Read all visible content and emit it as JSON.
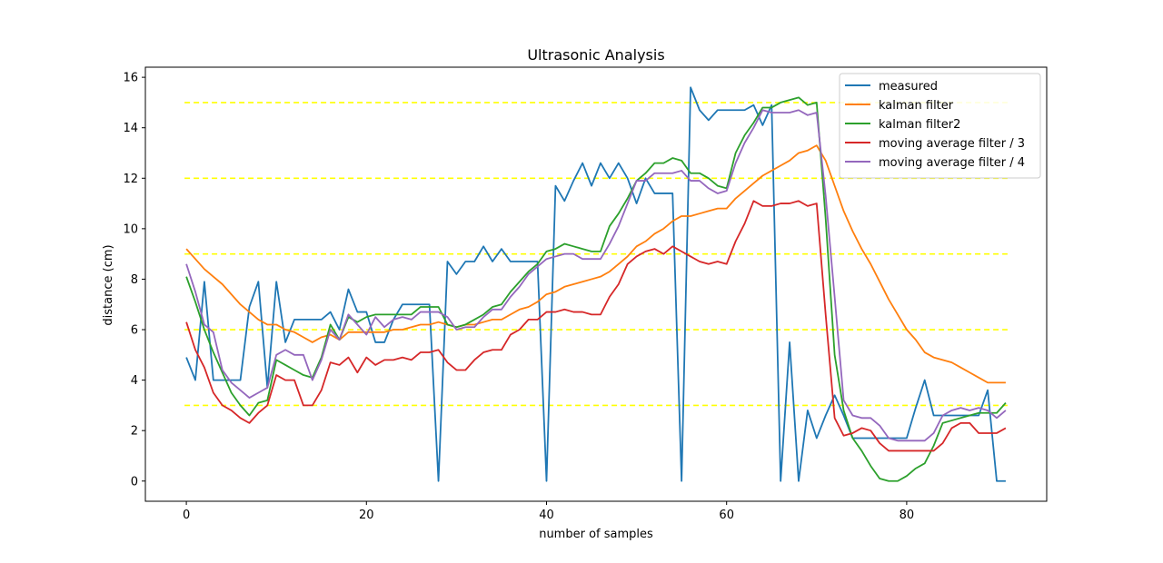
{
  "chart_data": {
    "type": "line",
    "title": "Ultrasonic Analysis",
    "xlabel": "number of samples",
    "ylabel": "distance (cm)",
    "xlim": [
      -4.55,
      95.55
    ],
    "ylim": [
      -0.8,
      16.4
    ],
    "xticks": [
      0,
      20,
      40,
      60,
      80
    ],
    "yticks": [
      0,
      2,
      4,
      6,
      8,
      10,
      12,
      14,
      16
    ],
    "grid": false,
    "legend_position": "top-right",
    "reference_lines": {
      "color": "#ffff00",
      "style": "dashed",
      "y": [
        3,
        6,
        9,
        12,
        15
      ]
    },
    "series": [
      {
        "name": "measured",
        "color": "#1f77b4",
        "values": [
          4.9,
          4.0,
          7.9,
          4.0,
          4.0,
          4.0,
          4.0,
          6.9,
          7.9,
          3.7,
          7.9,
          5.5,
          6.4,
          6.4,
          6.4,
          6.4,
          6.7,
          6.0,
          7.6,
          6.7,
          6.7,
          5.5,
          5.5,
          6.4,
          7.0,
          7.0,
          7.0,
          7.0,
          0.0,
          8.7,
          8.2,
          8.7,
          8.7,
          9.3,
          8.7,
          9.2,
          8.7,
          8.7,
          8.7,
          8.7,
          0.0,
          11.7,
          11.1,
          11.9,
          12.6,
          11.7,
          12.6,
          12.0,
          12.6,
          12.0,
          11.0,
          12.0,
          11.4,
          11.4,
          11.4,
          0.0,
          15.6,
          14.7,
          14.3,
          14.7,
          14.7,
          14.7,
          14.7,
          14.9,
          14.1,
          14.9,
          0.0,
          5.5,
          0.0,
          2.8,
          1.7,
          2.6,
          3.4,
          2.6,
          1.7,
          1.7,
          1.7,
          1.7,
          1.7,
          1.7,
          1.7,
          2.9,
          4.0,
          2.6,
          2.6,
          2.6,
          2.6,
          2.6,
          2.6,
          3.6,
          0.0,
          0.0
        ]
      },
      {
        "name": "kalman filter",
        "color": "#ff7f0e",
        "values": [
          9.2,
          8.8,
          8.4,
          8.1,
          7.8,
          7.4,
          7.0,
          6.7,
          6.4,
          6.2,
          6.2,
          6.0,
          5.9,
          5.7,
          5.5,
          5.7,
          5.8,
          5.6,
          5.9,
          5.9,
          5.9,
          5.9,
          5.9,
          6.0,
          6.0,
          6.1,
          6.2,
          6.2,
          6.3,
          6.2,
          6.1,
          6.2,
          6.2,
          6.3,
          6.4,
          6.4,
          6.6,
          6.8,
          6.9,
          7.1,
          7.4,
          7.5,
          7.7,
          7.8,
          7.9,
          8.0,
          8.1,
          8.3,
          8.6,
          8.9,
          9.3,
          9.5,
          9.8,
          10.0,
          10.3,
          10.5,
          10.5,
          10.6,
          10.7,
          10.8,
          10.8,
          11.2,
          11.5,
          11.8,
          12.1,
          12.3,
          12.5,
          12.7,
          13.0,
          13.1,
          13.3,
          12.7,
          11.7,
          10.7,
          9.9,
          9.2,
          8.6,
          7.9,
          7.2,
          6.6,
          6.0,
          5.6,
          5.1,
          4.9,
          4.8,
          4.7,
          4.5,
          4.3,
          4.1,
          3.9,
          3.9,
          3.9
        ]
      },
      {
        "name": "kalman filter2",
        "color": "#2ca02c",
        "values": [
          8.1,
          7.1,
          6.0,
          5.1,
          4.3,
          3.5,
          3.0,
          2.6,
          3.1,
          3.2,
          4.8,
          4.6,
          4.4,
          4.2,
          4.1,
          4.9,
          6.2,
          5.6,
          6.5,
          6.3,
          6.5,
          6.6,
          6.6,
          6.6,
          6.6,
          6.6,
          6.9,
          6.9,
          6.9,
          6.2,
          6.1,
          6.2,
          6.4,
          6.6,
          6.9,
          7.0,
          7.5,
          7.9,
          8.3,
          8.6,
          9.1,
          9.2,
          9.4,
          9.3,
          9.2,
          9.1,
          9.1,
          10.1,
          10.6,
          11.2,
          11.9,
          12.2,
          12.6,
          12.6,
          12.8,
          12.7,
          12.2,
          12.2,
          12.0,
          11.7,
          11.6,
          13.0,
          13.7,
          14.2,
          14.8,
          14.8,
          15.0,
          15.1,
          15.2,
          14.9,
          15.0,
          10.4,
          5.0,
          2.8,
          1.7,
          1.2,
          0.6,
          0.1,
          0.0,
          0.0,
          0.2,
          0.5,
          0.7,
          1.4,
          2.3,
          2.4,
          2.5,
          2.6,
          2.7,
          2.7,
          2.7,
          3.1
        ]
      },
      {
        "name": "moving average filter / 3",
        "color": "#d62728",
        "values": [
          6.3,
          5.2,
          4.5,
          3.5,
          3.0,
          2.8,
          2.5,
          2.3,
          2.7,
          3.0,
          4.2,
          4.0,
          4.0,
          3.0,
          3.0,
          3.6,
          4.7,
          4.6,
          4.9,
          4.3,
          4.9,
          4.6,
          4.8,
          4.8,
          4.9,
          4.8,
          5.1,
          5.1,
          5.2,
          4.7,
          4.4,
          4.4,
          4.8,
          5.1,
          5.2,
          5.2,
          5.8,
          6.0,
          6.4,
          6.4,
          6.7,
          6.7,
          6.8,
          6.7,
          6.7,
          6.6,
          6.6,
          7.3,
          7.8,
          8.6,
          8.9,
          9.1,
          9.2,
          9.0,
          9.3,
          9.1,
          8.9,
          8.7,
          8.6,
          8.7,
          8.6,
          9.5,
          10.2,
          11.1,
          10.9,
          10.9,
          11.0,
          11.0,
          11.1,
          10.9,
          11.0,
          6.6,
          2.5,
          1.8,
          1.9,
          2.1,
          2.0,
          1.5,
          1.2,
          1.2,
          1.2,
          1.2,
          1.2,
          1.2,
          1.5,
          2.1,
          2.3,
          2.3,
          1.9,
          1.9,
          1.9,
          2.1
        ]
      },
      {
        "name": "moving average filter / 4",
        "color": "#9467bd",
        "values": [
          8.6,
          7.5,
          6.2,
          5.9,
          4.4,
          3.9,
          3.6,
          3.3,
          3.5,
          3.7,
          5.0,
          5.2,
          5.0,
          5.0,
          4.0,
          4.8,
          6.0,
          5.6,
          6.6,
          6.2,
          5.8,
          6.5,
          6.1,
          6.4,
          6.5,
          6.4,
          6.7,
          6.7,
          6.7,
          6.5,
          6.0,
          6.1,
          6.1,
          6.5,
          6.8,
          6.8,
          7.3,
          7.7,
          8.2,
          8.5,
          8.8,
          8.9,
          9.0,
          9.0,
          8.8,
          8.8,
          8.8,
          9.4,
          10.1,
          11.0,
          11.9,
          11.9,
          12.2,
          12.2,
          12.2,
          12.3,
          11.9,
          11.9,
          11.6,
          11.4,
          11.5,
          12.6,
          13.4,
          14.0,
          14.7,
          14.6,
          14.6,
          14.6,
          14.7,
          14.5,
          14.6,
          11.3,
          7.3,
          3.2,
          2.6,
          2.5,
          2.5,
          2.2,
          1.7,
          1.6,
          1.6,
          1.6,
          1.6,
          1.9,
          2.6,
          2.8,
          2.9,
          2.8,
          2.9,
          2.8,
          2.5,
          2.8
        ]
      }
    ]
  }
}
